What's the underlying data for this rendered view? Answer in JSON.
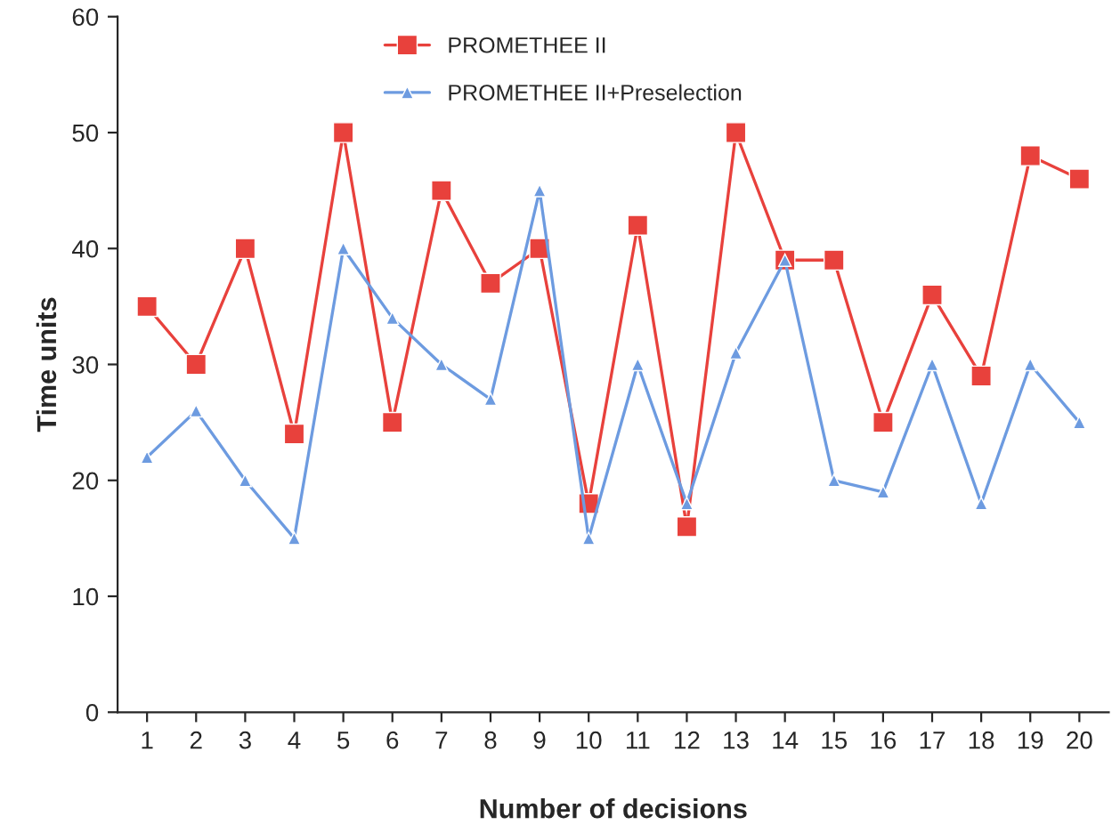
{
  "chart_data": {
    "type": "line",
    "xlabel": "Number of decisions",
    "ylabel": "Time units",
    "categories": [
      "1",
      "2",
      "3",
      "4",
      "5",
      "6",
      "7",
      "8",
      "9",
      "10",
      "11",
      "12",
      "13",
      "14",
      "15",
      "16",
      "17",
      "18",
      "19",
      "20"
    ],
    "series": [
      {
        "name": "PROMETHEE II",
        "color": "#e8413c",
        "marker": "square",
        "values": [
          35,
          30,
          40,
          24,
          50,
          25,
          45,
          37,
          40,
          18,
          42,
          16,
          50,
          39,
          39,
          25,
          36,
          29,
          48,
          46
        ]
      },
      {
        "name": "PROMETHEE II+Preselection",
        "color": "#6d9be0",
        "marker": "triangle",
        "values": [
          22,
          26,
          20,
          15,
          40,
          34,
          30,
          27,
          45,
          15,
          30,
          18,
          31,
          39,
          20,
          19,
          30,
          18,
          30,
          25
        ]
      }
    ],
    "ylim": [
      0,
      60
    ],
    "yticks": [
      0,
      10,
      20,
      30,
      40,
      50,
      60
    ],
    "grid": false,
    "legend": "top",
    "line_style": "solid"
  }
}
